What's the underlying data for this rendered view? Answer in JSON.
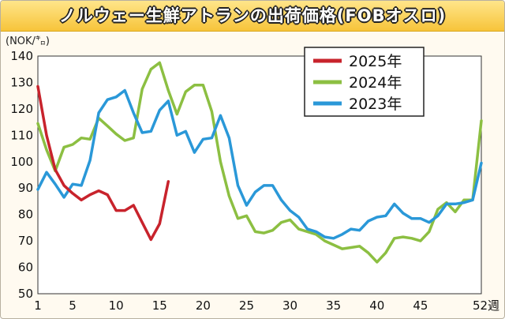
{
  "title": "ノルウェー生鮮アトランの出荷価格(FOBオスロ)",
  "chart_data": {
    "type": "line",
    "ylabel": "(NOK/㌔)",
    "xlabel": "",
    "x_unit": "週",
    "ylim": [
      50,
      140
    ],
    "xlim": [
      1,
      52
    ],
    "x_ticks": [
      1,
      5,
      10,
      15,
      20,
      25,
      30,
      35,
      40,
      45,
      52
    ],
    "x_tick_labels": [
      "1",
      "5",
      "10",
      "15",
      "20",
      "25",
      "30",
      "35",
      "40",
      "45",
      "52週"
    ],
    "y_ticks": [
      50,
      60,
      70,
      80,
      90,
      100,
      110,
      120,
      130,
      140
    ],
    "y_tick_labels": [
      "50",
      "60",
      "70",
      "80",
      "90",
      "100",
      "110",
      "120",
      "130",
      "140"
    ],
    "grid": true,
    "legend_position": "top-right",
    "series": [
      {
        "name": "2025年",
        "color": "#c8232c",
        "x": [
          1,
          2,
          3,
          4,
          5,
          6,
          7,
          8,
          9,
          10,
          11,
          12,
          13,
          14,
          15,
          16
        ],
        "values": [
          128.5,
          110.0,
          97.0,
          91.0,
          88.0,
          85.5,
          87.5,
          89.0,
          87.5,
          81.5,
          81.5,
          83.5,
          77.0,
          70.5,
          76.5,
          92.5
        ]
      },
      {
        "name": "2024年",
        "color": "#8cbf42",
        "x": [
          1,
          2,
          3,
          4,
          5,
          6,
          7,
          8,
          9,
          10,
          11,
          12,
          13,
          14,
          15,
          16,
          17,
          18,
          19,
          20,
          21,
          22,
          23,
          24,
          25,
          26,
          27,
          28,
          29,
          30,
          31,
          32,
          33,
          34,
          35,
          36,
          37,
          38,
          39,
          40,
          41,
          42,
          43,
          44,
          45,
          46,
          47,
          48,
          49,
          50,
          51,
          52
        ],
        "values": [
          114.5,
          104.5,
          96.5,
          105.5,
          106.5,
          109.0,
          108.5,
          116.5,
          113.5,
          110.5,
          108.0,
          109.0,
          127.5,
          135.0,
          137.5,
          127.0,
          118.0,
          126.5,
          129.0,
          129.0,
          119.0,
          100.0,
          87.0,
          78.5,
          79.5,
          73.5,
          73.0,
          74.0,
          77.0,
          78.0,
          74.5,
          73.5,
          72.5,
          70.0,
          68.5,
          67.0,
          67.5,
          68.0,
          65.5,
          62.0,
          65.5,
          71.0,
          71.5,
          71.0,
          70.0,
          73.5,
          82.0,
          84.5,
          81.0,
          85.5,
          85.5,
          115.5
        ]
      },
      {
        "name": "2023年",
        "color": "#2a98d8",
        "x": [
          1,
          2,
          3,
          4,
          5,
          6,
          7,
          8,
          9,
          10,
          11,
          12,
          13,
          14,
          15,
          16,
          17,
          18,
          19,
          20,
          21,
          22,
          23,
          24,
          25,
          26,
          27,
          28,
          29,
          30,
          31,
          32,
          33,
          34,
          35,
          36,
          37,
          38,
          39,
          40,
          41,
          42,
          43,
          44,
          45,
          46,
          47,
          48,
          49,
          50,
          51,
          52
        ],
        "values": [
          89.5,
          96.0,
          91.5,
          86.5,
          91.5,
          91.0,
          100.5,
          118.5,
          123.5,
          124.5,
          127.0,
          118.5,
          111.0,
          111.5,
          119.5,
          123.0,
          110.0,
          111.5,
          103.5,
          108.5,
          109.0,
          117.5,
          109.0,
          91.0,
          83.5,
          88.5,
          91.0,
          91.0,
          85.5,
          81.5,
          79.0,
          74.5,
          73.5,
          71.5,
          71.0,
          72.5,
          74.5,
          74.0,
          77.5,
          79.0,
          79.5,
          84.0,
          80.5,
          78.5,
          78.5,
          77.0,
          79.5,
          84.0,
          84.0,
          84.5,
          85.5,
          99.5
        ]
      }
    ]
  }
}
